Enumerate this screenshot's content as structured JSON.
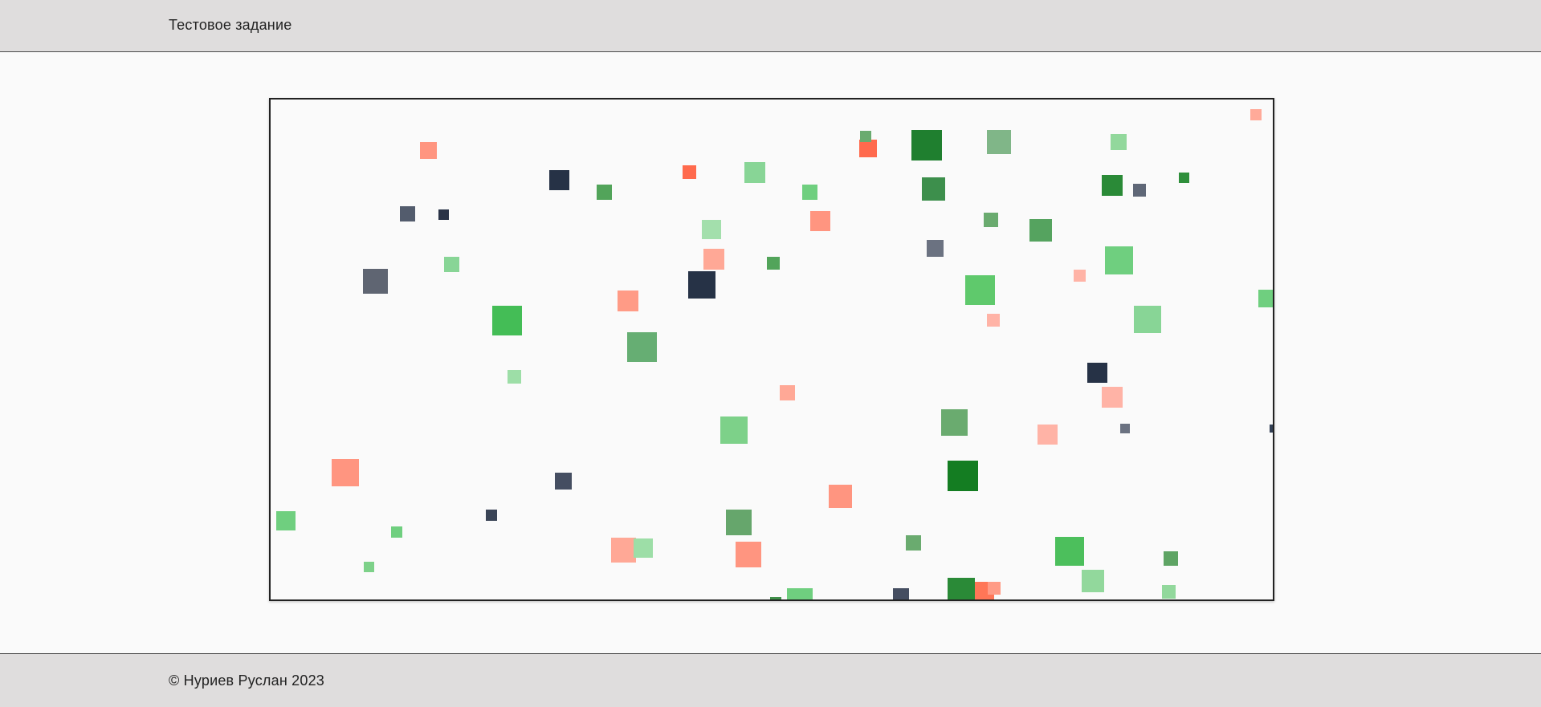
{
  "header": {
    "title": "Тестовое задание"
  },
  "footer": {
    "copyright": "© Нуриев Руслан 2023"
  }
}
